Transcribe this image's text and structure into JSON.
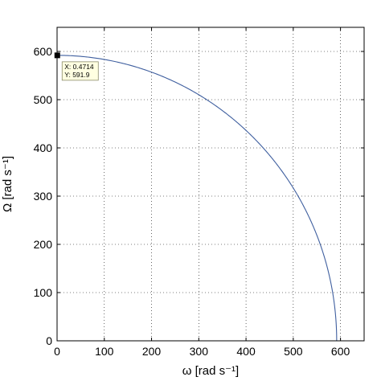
{
  "chart_data": {
    "type": "line",
    "xlabel": "ω [rad s⁻¹]",
    "ylabel": "Ω [rad s⁻¹]",
    "xlim": [
      0,
      650
    ],
    "ylim": [
      0,
      650
    ],
    "xticks": [
      0,
      100,
      200,
      300,
      400,
      500,
      600
    ],
    "yticks": [
      0,
      100,
      200,
      300,
      400,
      500,
      600
    ],
    "grid": true,
    "series": [
      {
        "curve": "quarter-circle",
        "radius": 591.9,
        "x_range": [
          0,
          591.9
        ],
        "color": "#3f5f9f"
      }
    ],
    "datatip": {
      "x": 0.4714,
      "y": 591.9,
      "x_text": "X: 0.4714",
      "y_text": "Y: 591.9"
    }
  }
}
